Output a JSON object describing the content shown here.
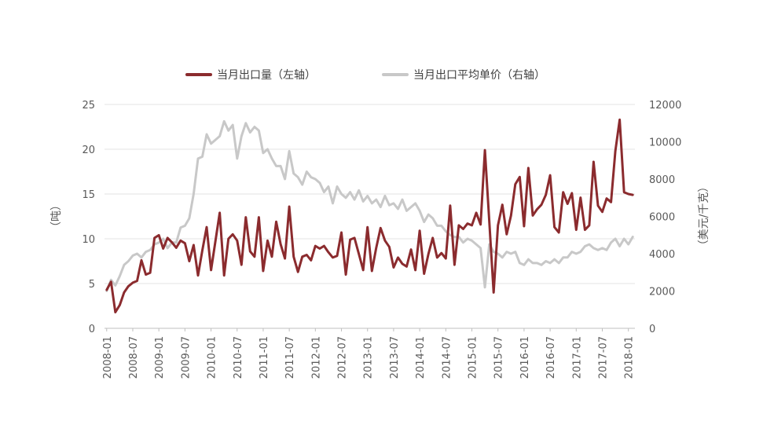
{
  "chart_data": {
    "type": "line",
    "x": [
      "2008-01",
      "2008-02",
      "2008-03",
      "2008-04",
      "2008-05",
      "2008-06",
      "2008-07",
      "2008-08",
      "2008-09",
      "2008-10",
      "2008-11",
      "2008-12",
      "2009-01",
      "2009-02",
      "2009-03",
      "2009-04",
      "2009-05",
      "2009-06",
      "2009-07",
      "2009-08",
      "2009-09",
      "2009-10",
      "2009-11",
      "2009-12",
      "2010-01",
      "2010-02",
      "2010-03",
      "2010-04",
      "2010-05",
      "2010-06",
      "2010-07",
      "2010-08",
      "2010-09",
      "2010-10",
      "2010-11",
      "2010-12",
      "2011-01",
      "2011-02",
      "2011-03",
      "2011-04",
      "2011-05",
      "2011-06",
      "2011-07",
      "2011-08",
      "2011-09",
      "2011-10",
      "2011-11",
      "2011-12",
      "2012-01",
      "2012-02",
      "2012-03",
      "2012-04",
      "2012-05",
      "2012-06",
      "2012-07",
      "2012-08",
      "2012-09",
      "2012-10",
      "2012-11",
      "2012-12",
      "2013-01",
      "2013-02",
      "2013-03",
      "2013-04",
      "2013-05",
      "2013-06",
      "2013-07",
      "2013-08",
      "2013-09",
      "2013-10",
      "2013-11",
      "2013-12",
      "2014-01",
      "2014-02",
      "2014-03",
      "2014-04",
      "2014-05",
      "2014-06",
      "2014-07",
      "2014-08",
      "2014-09",
      "2014-10",
      "2014-11",
      "2014-12",
      "2015-01",
      "2015-02",
      "2015-03",
      "2015-04",
      "2015-05",
      "2015-06",
      "2015-07",
      "2015-08",
      "2015-09",
      "2015-10",
      "2015-11",
      "2015-12",
      "2016-01",
      "2016-02",
      "2016-03",
      "2016-04",
      "2016-05",
      "2016-06",
      "2016-07",
      "2016-08",
      "2016-09",
      "2016-10",
      "2016-11",
      "2016-12",
      "2017-01",
      "2017-02",
      "2017-03",
      "2017-04",
      "2017-05",
      "2017-06",
      "2017-07",
      "2017-08",
      "2017-09",
      "2017-10",
      "2017-11",
      "2017-12",
      "2018-01",
      "2018-02"
    ],
    "x_tick_labels": [
      "2008-01",
      "2008-07",
      "2009-01",
      "2009-07",
      "2010-01",
      "2010-07",
      "2011-01",
      "2011-07",
      "2012-01",
      "2012-07",
      "2013-01",
      "2013-07",
      "2014-01",
      "2014-07",
      "2015-01",
      "2015-07",
      "2016-01",
      "2016-07",
      "2017-01",
      "2017-07",
      "2018-01"
    ],
    "y_left_ticks": [
      "0",
      "5",
      "10",
      "15",
      "20",
      "25"
    ],
    "y_right_ticks": [
      "0",
      "2000",
      "4000",
      "6000",
      "8000",
      "10000",
      "12000"
    ],
    "y_left_label": "（吨）",
    "y_right_label": "（美元/千克）",
    "ylim_left": [
      0,
      25
    ],
    "ylim_right": [
      0,
      12000
    ],
    "legend_position": "top",
    "grid": "horizontal",
    "series": [
      {
        "name": "当月出口量（左轴）",
        "axis": "left",
        "color": "#8b2b2e",
        "values": [
          4.3,
          5.2,
          1.8,
          2.6,
          4.0,
          4.7,
          5.1,
          5.3,
          7.6,
          6.0,
          6.2,
          10.1,
          10.4,
          8.9,
          10.1,
          9.6,
          9.0,
          9.8,
          9.5,
          7.5,
          9.3,
          5.9,
          8.7,
          11.3,
          6.5,
          9.7,
          12.9,
          5.9,
          10.0,
          10.5,
          9.8,
          7.1,
          12.4,
          8.6,
          8.0,
          12.4,
          6.4,
          9.8,
          8.0,
          11.9,
          9.4,
          7.8,
          13.6,
          8.0,
          6.3,
          8.0,
          8.2,
          7.6,
          9.2,
          8.9,
          9.2,
          8.5,
          7.9,
          8.1,
          10.7,
          6.0,
          9.9,
          10.1,
          8.3,
          6.5,
          11.3,
          6.4,
          9.0,
          11.2,
          9.8,
          9.1,
          6.8,
          7.9,
          7.2,
          6.9,
          8.8,
          6.5,
          10.9,
          6.1,
          8.3,
          10.1,
          7.9,
          8.4,
          7.8,
          13.7,
          7.1,
          11.5,
          11.1,
          11.7,
          11.5,
          12.9,
          11.6,
          19.9,
          11.9,
          4.0,
          11.5,
          13.8,
          10.5,
          12.6,
          16.1,
          16.9,
          11.4,
          17.9,
          12.6,
          13.3,
          13.8,
          14.9,
          17.1,
          11.3,
          10.7,
          15.2,
          13.9,
          15.1,
          11.0,
          14.6,
          11.0,
          11.5,
          18.6,
          13.7,
          13.0,
          14.5,
          14.1,
          19.8,
          23.3,
          15.2,
          15.0,
          14.9
        ]
      },
      {
        "name": "当月出口平均单价（右轴）",
        "axis": "right",
        "color": "#c8c8c8",
        "values": [
          2000,
          2600,
          2300,
          2800,
          3400,
          3600,
          3900,
          4000,
          3800,
          4100,
          4200,
          4500,
          4600,
          4800,
          4300,
          4600,
          4600,
          5400,
          5500,
          5900,
          7200,
          9100,
          9200,
          10400,
          9900,
          10100,
          10300,
          11100,
          10600,
          10900,
          9100,
          10300,
          11000,
          10500,
          10800,
          10600,
          9400,
          9600,
          9100,
          8700,
          8700,
          8000,
          9500,
          8300,
          8100,
          7700,
          8400,
          8100,
          8000,
          7800,
          7300,
          7600,
          6700,
          7600,
          7200,
          7000,
          7300,
          6900,
          7400,
          6800,
          7100,
          6700,
          6900,
          6500,
          7100,
          6600,
          6700,
          6400,
          6900,
          6300,
          6500,
          6700,
          6300,
          5700,
          6100,
          5900,
          5500,
          5500,
          5200,
          5000,
          4900,
          4900,
          4600,
          4800,
          4700,
          4500,
          4300,
          2200,
          4500,
          4100,
          4000,
          3800,
          4100,
          4000,
          4100,
          3500,
          3400,
          3700,
          3500,
          3500,
          3400,
          3600,
          3500,
          3700,
          3500,
          3800,
          3800,
          4100,
          4000,
          4100,
          4400,
          4500,
          4300,
          4200,
          4300,
          4200,
          4600,
          4800,
          4400,
          4800,
          4500,
          4900
        ]
      }
    ]
  }
}
